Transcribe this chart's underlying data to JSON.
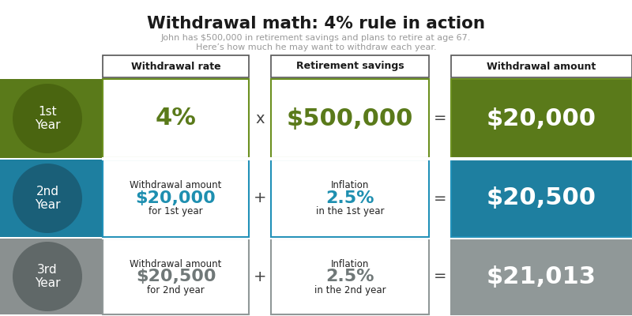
{
  "title": "Withdrawal math: 4% rule in action",
  "subtitle_line1": "John has $500,000 in retirement savings and plans to retire at age 67.",
  "subtitle_line2": "Here’s how much he may want to withdraw each year.",
  "header_labels": [
    "Withdrawal rate",
    "Retirement savings",
    "Withdrawal amount"
  ],
  "row1_label": "1st\nYear",
  "row2_label": "2nd\nYear",
  "row3_label": "3rd\nYear",
  "row1_col1": "4%",
  "row1_col2": "$500,000",
  "row1_col3": "$20,000",
  "row1_op1": "x",
  "row1_op2": "=",
  "row2_col1_line1": "Withdrawal amount",
  "row2_col1_line2": "$20,000",
  "row2_col1_line3": "for 1st year",
  "row2_col2_line1": "Inflation",
  "row2_col2_line2": "2.5%",
  "row2_col2_line3": "in the 1st year",
  "row2_col3": "$20,500",
  "row2_op1": "+",
  "row2_op2": "=",
  "row3_col1_line1": "Withdrawal amount",
  "row3_col1_line2": "$20,500",
  "row3_col1_line3": "for 2nd year",
  "row3_col2_line1": "Inflation",
  "row3_col2_line2": "2.5%",
  "row3_col2_line3": "in the 2nd year",
  "row3_col3": "$21,013",
  "row3_op1": "+",
  "row3_op2": "=",
  "color_green_bg": "#5a7a1a",
  "color_green_circle": "#4a6510",
  "color_green_result": "#5a7a1a",
  "color_green_text": "#5a7a1a",
  "color_green_border": "#6b9020",
  "color_blue_bg": "#1e7fa0",
  "color_blue_circle": "#1a5f78",
  "color_blue_result": "#1e7fa0",
  "color_blue_text": "#1e8fb0",
  "color_blue_border": "#2090b8",
  "color_gray_bg": "#8a9090",
  "color_gray_circle": "#606868",
  "color_gray_result": "#909898",
  "color_gray_text": "#707878",
  "color_gray_border": "#909898",
  "color_white": "#ffffff",
  "color_black": "#1a1a1a",
  "title_color": "#1a1a1a",
  "subtitle_color": "#999999",
  "bg_color": "#ffffff",
  "header_border_color": "#555555"
}
